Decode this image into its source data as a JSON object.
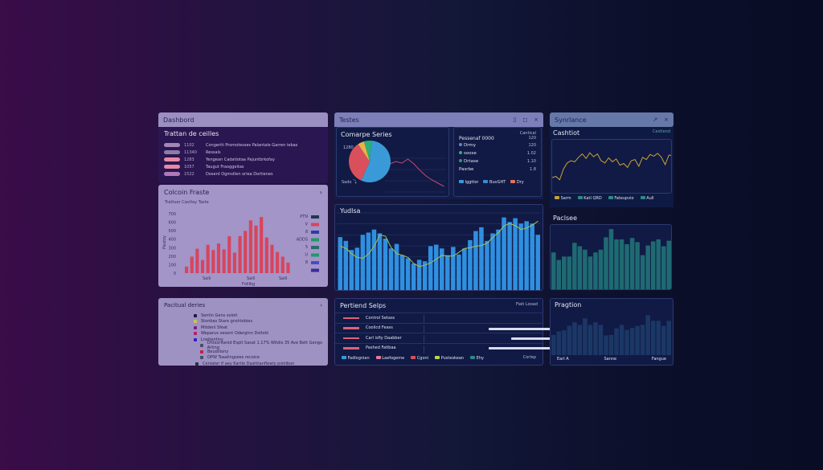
{
  "left": {
    "dashboard": {
      "title": "Dashbord",
      "subtitle": "Trattan de ceilles",
      "items": [
        {
          "value": "1102",
          "label": "Congeriti Promotesses Palantale Garren iebas",
          "color": "#a486b8"
        },
        {
          "value": "11340",
          "label": "Ressals",
          "color": "#8f7aaa"
        },
        {
          "value": "1283",
          "label": "Yengean Cadatiotaa Pajuntbrkofay",
          "color": "#e48aa4"
        },
        {
          "value": "1057",
          "label": "Taugut Fraoggeitas",
          "color": "#e48aa4"
        },
        {
          "value": "1522",
          "label": "Dosent Ogmstlen oriea Dortienes",
          "color": "#b07ab8"
        }
      ]
    },
    "column": {
      "title": "Colcoin Fraste",
      "subtitle": "Trattuer Cavtlay Taste",
      "chevron": "›",
      "yticks": [
        "0",
        "100",
        "200",
        "300",
        "400",
        "500",
        "600",
        "700"
      ],
      "ylabel": "Pautoy",
      "xticks": [
        "Salli",
        "Salli",
        "Salli"
      ],
      "xlabel": "Folilbg",
      "values": [
        1,
        2.5,
        3.7,
        2,
        4.3,
        3.5,
        4.5,
        3.6,
        5.6,
        3.1,
        5.6,
        6.4,
        8,
        7.2,
        8.5,
        5.4,
        4.3,
        3.2,
        2.5,
        1.6
      ],
      "bar_color": "#d9445c",
      "legend": [
        {
          "label": "PTN",
          "color": "#203a4a"
        },
        {
          "label": "V",
          "color": "#d9445c"
        },
        {
          "label": "8",
          "color": "#2a3ea8"
        },
        {
          "label": "ADDS",
          "color": "#1f9a6a"
        },
        {
          "label": "5",
          "color": "#2a6a6a"
        },
        {
          "label": "U",
          "color": "#1f9a6a"
        },
        {
          "label": "8",
          "color": "#4a4ac8"
        },
        {
          "label": "",
          "color": "#3a2a9a"
        }
      ]
    },
    "partial": {
      "title": "Pacitual deries",
      "chevron": "›",
      "items": [
        {
          "label": "Sentin Gens soloit",
          "color": "#1a1a4a"
        },
        {
          "label": "Stonbas Stare gnshtobies",
          "color": "#c8c84a"
        },
        {
          "label": "Mitdenl Sfeat",
          "color": "#7a1a8a"
        },
        {
          "label": "Weparus vesent Oderginn Doltskt",
          "color": "#b81a6a"
        },
        {
          "label": "Lneitentivy",
          "color": "#3a1ac8"
        },
        {
          "label": "Dhtsoritanid Espit Sasat 1.17% Witdis 35 Ave Bett Gengo Arting",
          "color": "#4a4a6a"
        },
        {
          "label": "Beudiliony",
          "color": "#c81a4a"
        },
        {
          "label": "OPW Toaalingsees recoice",
          "color": "#4a4a6a"
        },
        {
          "label": "Cenlater if aey Kartle Dashtianflewly pistiibon",
          "color": "#2a2a4a"
        }
      ]
    }
  },
  "middle": {
    "header": {
      "title": "Testes",
      "icons": [
        "trash-icon",
        "copy-icon",
        "close-icon"
      ]
    },
    "compare": {
      "title": "Comarpe Series",
      "label_top": "1280",
      "label_bottom": "Sado ⤵",
      "pie": [
        {
          "value": 55,
          "color": "#3a9ad8"
        },
        {
          "value": 34,
          "color": "#d9505c"
        },
        {
          "value": 5,
          "color": "#e8b24a"
        },
        {
          "value": 6,
          "color": "#2ab07a"
        }
      ],
      "line": [
        5,
        5.3,
        5.1,
        5.6,
        5,
        4.2,
        3.5,
        3,
        2.6,
        2.2
      ]
    },
    "stats": {
      "header": "Cantical",
      "title": "Pessenaf 0000",
      "title_value": "120",
      "rows": [
        {
          "label": "Drmy",
          "value": "120",
          "color": "#5a8ac8"
        },
        {
          "label": "soose",
          "value": "1.02",
          "color": "#2ab07a"
        },
        {
          "label": "Drtase",
          "value": "1.10",
          "color": "#2a9a7a"
        },
        {
          "label": "Pasrbe",
          "value": "1.8",
          "color": ""
        }
      ],
      "legend": [
        {
          "label": "Iggttor",
          "color": "#3a9ad8"
        },
        {
          "label": "BuvGHT",
          "color": "#3a8ad8"
        },
        {
          "label": "Dry",
          "color": "#e8705a"
        }
      ]
    },
    "bars": {
      "title": "Yudlsa",
      "bar_color": "#2f8fe0",
      "line_color": "#a9c24a",
      "values": [
        7,
        6.5,
        5.3,
        5.6,
        7.3,
        7.6,
        8,
        7.5,
        6.8,
        5.5,
        6.1,
        4.6,
        4.2,
        3.5,
        4,
        3.8,
        5.8,
        6,
        5.5,
        4.6,
        5.7,
        4.7,
        5.5,
        6.6,
        7.8,
        8.3,
        6.5,
        7.5,
        8,
        9.6,
        9,
        9.5,
        8.8,
        9.1,
        8.8,
        7.3
      ],
      "line": [
        5.8,
        5.5,
        4.8,
        4.3,
        4.2,
        4.8,
        5.8,
        7.3,
        7.1,
        5.6,
        4.8,
        4.6,
        4.3,
        3.5,
        3.1,
        3.3,
        3.6,
        4.1,
        4.6,
        4.5,
        4.5,
        5,
        5.5,
        5.6,
        5.8,
        5.9,
        6.2,
        7,
        7.6,
        8.5,
        8.8,
        8.5,
        8,
        8.2,
        8.6,
        9.1
      ]
    },
    "period": {
      "title": "Pertiend Selps",
      "action": "Fiati Looad",
      "rows": [
        {
          "label": "Control Setass"
        },
        {
          "label": "Coolicd Feass"
        },
        {
          "label": "Carl isfiy Daabber"
        },
        {
          "label": "Pashed Fatibaa"
        }
      ],
      "legend": [
        {
          "label": "Fadlognian",
          "color": "#3a9ad8"
        },
        {
          "label": "Laefogeme",
          "color": "#e07a9a"
        },
        {
          "label": "Cgoni",
          "color": "#d9505c"
        },
        {
          "label": "Pusteskean",
          "color": "#b8d84a"
        },
        {
          "label": "Ehy",
          "color": "#2a8a8a"
        }
      ],
      "footer": "Corlep"
    }
  },
  "right": {
    "header": {
      "title": "Synrlance",
      "icons": [
        "expand-icon",
        "close-icon"
      ]
    },
    "cashflow": {
      "title": "Cashtiot",
      "action": "Cestlend",
      "line_color": "#c8a23a",
      "line": [
        3,
        3.2,
        2.6,
        4.5,
        5.6,
        6,
        5.8,
        6.6,
        7.2,
        6.4,
        7.4,
        6.7,
        7.2,
        6,
        5.6,
        6.5,
        5.8,
        6.3,
        5.2,
        5.5,
        4.8,
        6,
        6.2,
        5,
        6.6,
        6.2,
        7.1,
        6.8,
        7.3,
        6.6,
        5.3,
        7,
        6.9
      ],
      "legend": [
        {
          "label": "Sarm",
          "color": "#c8a23a"
        },
        {
          "label": "Katl QRD",
          "color": "#2a8a8a"
        },
        {
          "label": "Fateupvio",
          "color": "#2a8a8a"
        },
        {
          "label": "Aull",
          "color": "#2a8a8a"
        }
      ]
    },
    "pacbee": {
      "title": "Paclsee",
      "bar_color": "#1f6a72",
      "values": [
        5.6,
        4.5,
        5,
        5,
        7,
        6.5,
        6,
        5,
        5.6,
        6,
        7.8,
        9,
        7.5,
        7.5,
        6.8,
        7.7,
        7.1,
        5.2,
        6.6,
        7.2,
        7.5,
        6.5,
        7.3
      ]
    },
    "tracker": {
      "title": "Pragtion",
      "bar_color": "#1b3766",
      "values": [
        4,
        4.7,
        4.9,
        5.8,
        6.5,
        6,
        7.3,
        6,
        6.5,
        6,
        3.9,
        4,
        5.3,
        6,
        5,
        5.4,
        5.8,
        6,
        7.9,
        6.8,
        6.8,
        5.8,
        6.8
      ],
      "xticks": [
        "Earl A",
        "Sanne",
        "Fangue"
      ]
    }
  }
}
